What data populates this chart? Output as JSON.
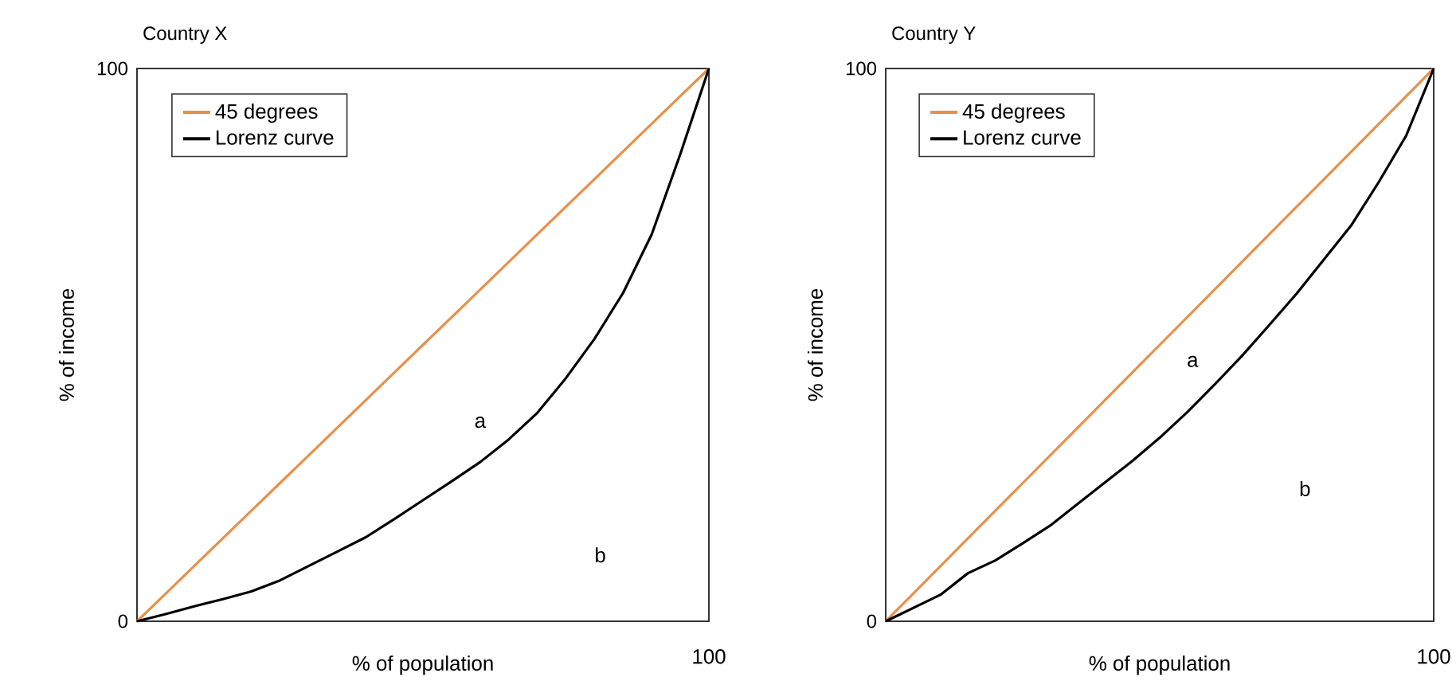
{
  "chart_data": [
    {
      "type": "line",
      "title": "Country X",
      "xlabel": "% of population",
      "ylabel": "% of income",
      "categories": [
        null,
        null,
        null,
        null,
        null,
        null,
        null,
        null,
        null,
        null,
        null,
        null,
        null,
        null,
        null,
        null,
        null,
        null,
        null,
        null,
        null
      ],
      "ylim": [
        0,
        100
      ],
      "yticks": [
        0,
        100
      ],
      "legend": "top left",
      "annotations": [
        "a",
        "b",
        "100"
      ],
      "series": [
        {
          "name": "45 degrees",
          "color": "#e8904a",
          "values": [
            0,
            5,
            10,
            15,
            20,
            25,
            30,
            35,
            40,
            45,
            50,
            55,
            60,
            65,
            70,
            75,
            80,
            85,
            90,
            95,
            100
          ]
        },
        {
          "name": "Lorenz curve",
          "color": "#000000",
          "values": [
            0,
            1.3,
            2.7,
            4.0,
            5.4,
            7.4,
            10.0,
            12.6,
            15.2,
            18.5,
            21.9,
            25.3,
            28.8,
            32.9,
            37.7,
            44.0,
            51.1,
            59.4,
            70.0,
            84.5,
            100
          ]
        }
      ]
    },
    {
      "type": "line",
      "title": "Country Y",
      "xlabel": "% of population",
      "ylabel": "% of income",
      "categories": [
        null,
        null,
        null,
        null,
        null,
        null,
        null,
        null,
        null,
        null,
        null,
        null,
        null,
        null,
        null,
        null,
        null,
        null,
        null,
        null,
        null
      ],
      "ylim": [
        0,
        100
      ],
      "yticks": [
        0,
        100
      ],
      "legend": "top left",
      "annotations": [
        "a",
        "b",
        "100"
      ],
      "series": [
        {
          "name": "45 degrees",
          "color": "#e8904a",
          "values": [
            0,
            5,
            10,
            15,
            20,
            25,
            30,
            35,
            40,
            45,
            50,
            55,
            60,
            65,
            70,
            75,
            80,
            85,
            90,
            95,
            100
          ]
        },
        {
          "name": "Lorenz curve",
          "color": "#000000",
          "values": [
            0,
            2.4,
            4.8,
            8.7,
            11.0,
            14.1,
            17.3,
            21.2,
            25.1,
            29.0,
            33.2,
            37.8,
            42.8,
            48.0,
            53.6,
            59.3,
            65.5,
            71.7,
            79.5,
            87.9,
            100
          ]
        }
      ]
    }
  ]
}
